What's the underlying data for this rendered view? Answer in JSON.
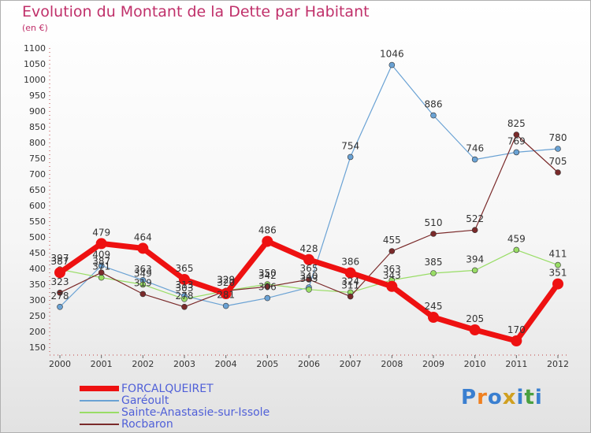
{
  "header": {
    "title": "Evolution du Montant de la Dette par Habitant",
    "subtitle": "(en €)"
  },
  "logo": {
    "letters": [
      "P",
      "r",
      "o",
      "x",
      "i",
      "t",
      "i"
    ],
    "colors": [
      "#3a7fd0",
      "#f08020",
      "#3a7fd0",
      "#d0a020",
      "#3a7fd0",
      "#4aa040",
      "#3a7fd0"
    ]
  },
  "chart_data": {
    "type": "line",
    "title": "Evolution du Montant de la Dette par Habitant",
    "ylabel": "(en €)",
    "xlabel": "",
    "x": [
      "2000",
      "2001",
      "2002",
      "2003",
      "2004",
      "2005",
      "2006",
      "2007",
      "2008",
      "2009",
      "2010",
      "2011",
      "2012"
    ],
    "ylim": [
      150,
      1100
    ],
    "yticks": [
      150,
      200,
      250,
      300,
      350,
      400,
      450,
      500,
      550,
      600,
      650,
      700,
      750,
      800,
      850,
      900,
      950,
      1000,
      1050,
      1100
    ],
    "grid": false,
    "legend": "bottom-left",
    "series": [
      {
        "name": "FORCALQUEIRET",
        "color": "#ee1111",
        "width": 7,
        "marker": 7,
        "values": [
          387,
          479,
          464,
          365,
          320,
          486,
          428,
          386,
          343,
          245,
          205,
          170,
          351
        ],
        "labels": [
          "387",
          "479",
          "464",
          "365",
          "320",
          "486",
          "428",
          "386",
          "343",
          "245",
          "205",
          "170",
          "351"
        ]
      },
      {
        "name": "Garéoult",
        "color": "#6aa2d4",
        "width": 1.2,
        "marker": 3.5,
        "values": [
          278,
          409,
          363,
          313,
          281,
          306,
          340,
          754,
          1046,
          886,
          746,
          769,
          780
        ],
        "labels": [
          "278",
          "409",
          "363",
          "313",
          "281",
          "306",
          "340",
          "754",
          "1046",
          "886",
          "746",
          "769",
          "780"
        ]
      },
      {
        "name": "Sainte-Anastasie-sur-Issole",
        "color": "#99dd66",
        "width": 1.2,
        "marker": 3.5,
        "values": [
          397,
          371,
          349,
          303,
          329,
          350,
          333,
          324,
          363,
          385,
          394,
          459,
          411
        ],
        "labels": [
          "397",
          "371",
          "349",
          "303",
          "329",
          "350",
          "333",
          "324",
          "363",
          "385",
          "394",
          "459",
          "411"
        ]
      },
      {
        "name": "Rocbaron",
        "color": "#7a2a2a",
        "width": 1.2,
        "marker": 3.5,
        "values": [
          323,
          387,
          319,
          278,
          329,
          342,
          365,
          311,
          455,
          510,
          522,
          825,
          705
        ],
        "labels": [
          "323",
          "387",
          "319",
          "278",
          "329",
          "342",
          "365",
          "311",
          "455",
          "510",
          "522",
          "825",
          "705"
        ]
      }
    ]
  }
}
